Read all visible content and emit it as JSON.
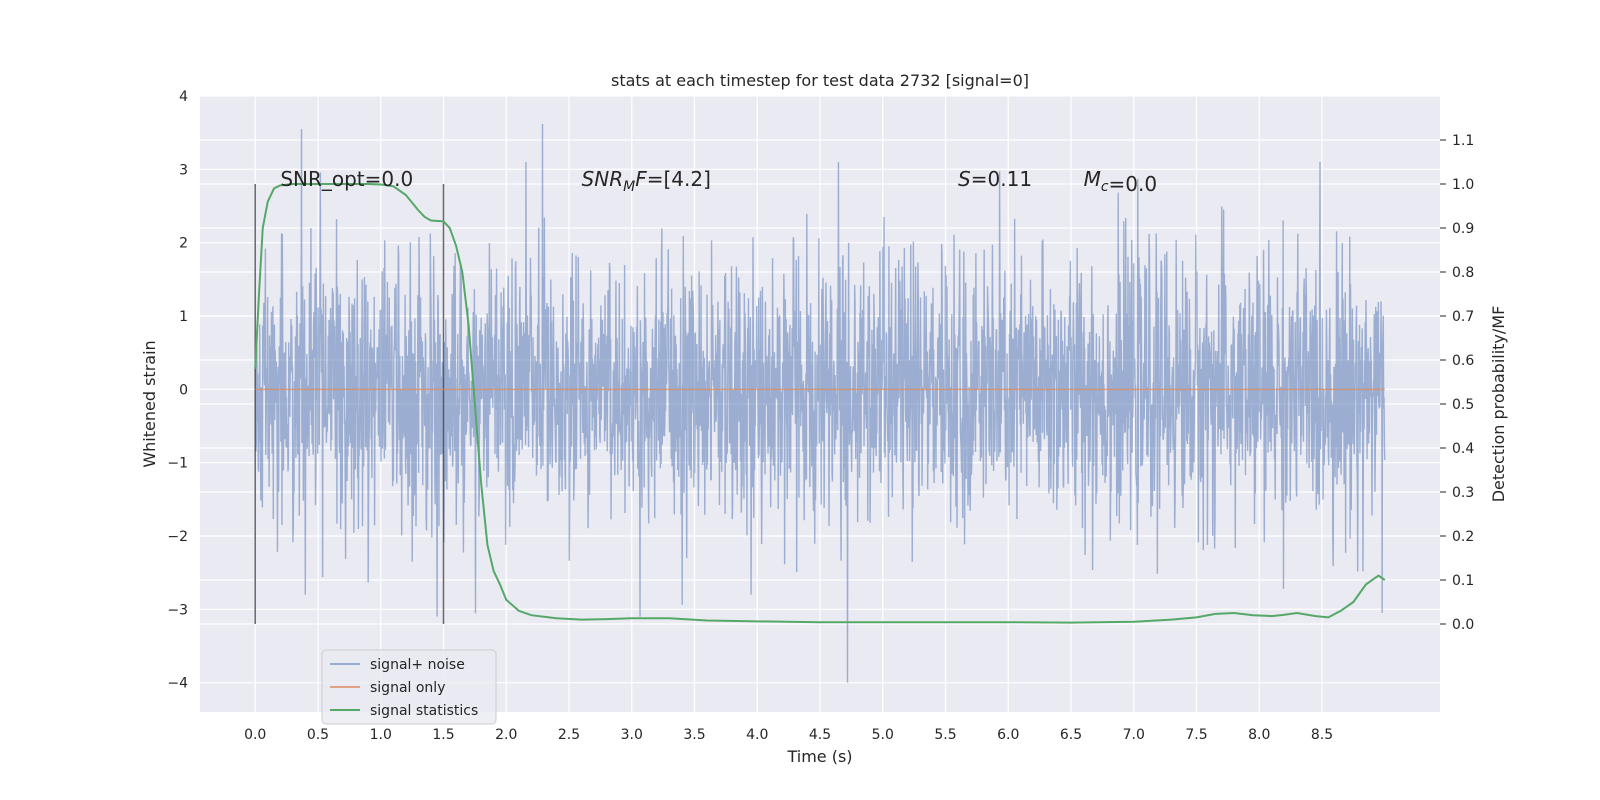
{
  "chart_data": {
    "type": "line",
    "title": "stats at each timestep for test data 2732 [signal=0]",
    "xlabel": "Time (s)",
    "ylabel_left": "Whitened strain",
    "ylabel_right": "Detection probability/MF",
    "xlim": [
      -0.44,
      9.44
    ],
    "ylim_left": [
      -4.4,
      4.0
    ],
    "ylim_right": [
      -0.2,
      1.2
    ],
    "x_ticks": [
      0.0,
      0.5,
      1.0,
      1.5,
      2.0,
      2.5,
      3.0,
      3.5,
      4.0,
      4.5,
      5.0,
      5.5,
      6.0,
      6.5,
      7.0,
      7.5,
      8.0,
      8.5
    ],
    "x_tick_labels": [
      "0.0",
      "0.5",
      "1.0",
      "1.5",
      "2.0",
      "2.5",
      "3.0",
      "3.5",
      "4.0",
      "4.5",
      "5.0",
      "5.5",
      "6.0",
      "6.5",
      "7.0",
      "7.5",
      "8.0",
      "8.5"
    ],
    "y_ticks_left": [
      4,
      3,
      2,
      1,
      0,
      -1,
      -2,
      -3,
      -4
    ],
    "y_tick_labels_left": [
      "4",
      "3",
      "2",
      "1",
      "0",
      "−1",
      "−2",
      "−3",
      "−4"
    ],
    "y_ticks_right": [
      1.1,
      1.0,
      0.9,
      0.8,
      0.7,
      0.6,
      0.5,
      0.4,
      0.3,
      0.2,
      0.1,
      0.0
    ],
    "y_tick_labels_right": [
      "1.1",
      "1.0",
      "0.9",
      "0.8",
      "0.7",
      "0.6",
      "0.5",
      "0.4",
      "0.3",
      "0.2",
      "0.1",
      "0.0"
    ],
    "annotations": [
      {
        "text": "SNR_opt=0.0",
        "x": 0.2
      },
      {
        "text": "SNR_MF=[4.2]",
        "x": 2.6
      },
      {
        "text": "S=0.11",
        "x": 5.6
      },
      {
        "text": "M_c=0.0",
        "x": 6.6
      }
    ],
    "annotation_y": 2.8,
    "window_markers": {
      "x": [
        0.0,
        1.5
      ],
      "y_range": [
        -3.2,
        2.8
      ]
    },
    "series": [
      {
        "name": "signal+ noise",
        "color": "#4c72b0",
        "x_range": [
          0.0,
          9.0
        ],
        "noise_sigma": 0.9,
        "peaks": [
          [
            0.37,
            3.55
          ],
          [
            2.29,
            3.62
          ],
          [
            4.72,
            -4.0
          ],
          [
            8.98,
            -3.05
          ],
          [
            0.4,
            -2.8
          ],
          [
            3.95,
            -2.8
          ]
        ]
      },
      {
        "name": "signal only",
        "color": "#dd8452",
        "x": [
          0.0,
          9.0
        ],
        "y": [
          0.0,
          0.0
        ]
      },
      {
        "name": "signal statistics",
        "color": "#55a868",
        "axis": "right",
        "x": [
          0.0,
          0.03,
          0.06,
          0.1,
          0.15,
          0.2,
          0.3,
          0.5,
          0.7,
          0.9,
          1.0,
          1.1,
          1.2,
          1.3,
          1.35,
          1.4,
          1.5,
          1.55,
          1.6,
          1.65,
          1.7,
          1.75,
          1.8,
          1.85,
          1.9,
          1.95,
          2.0,
          2.1,
          2.2,
          2.4,
          2.6,
          2.8,
          3.0,
          3.3,
          3.6,
          4.0,
          4.5,
          5.0,
          5.5,
          6.0,
          6.5,
          7.0,
          7.3,
          7.5,
          7.65,
          7.8,
          7.95,
          8.1,
          8.2,
          8.3,
          8.45,
          8.55,
          8.65,
          8.75,
          8.85,
          8.95,
          9.0
        ],
        "y": [
          0.58,
          0.75,
          0.9,
          0.96,
          0.99,
          0.997,
          1.0,
          1.0,
          1.0,
          1.0,
          0.999,
          0.995,
          0.975,
          0.94,
          0.925,
          0.917,
          0.915,
          0.9,
          0.86,
          0.8,
          0.68,
          0.5,
          0.32,
          0.18,
          0.12,
          0.09,
          0.055,
          0.03,
          0.02,
          0.013,
          0.01,
          0.011,
          0.013,
          0.013,
          0.008,
          0.006,
          0.004,
          0.004,
          0.004,
          0.004,
          0.003,
          0.005,
          0.01,
          0.015,
          0.023,
          0.025,
          0.02,
          0.018,
          0.021,
          0.025,
          0.018,
          0.015,
          0.03,
          0.05,
          0.09,
          0.11,
          0.1
        ]
      }
    ],
    "legend": {
      "position": "bottom-left",
      "entries": [
        "signal+ noise",
        "signal only",
        "signal statistics"
      ]
    },
    "grid": true,
    "colors": {
      "plot_background": "#eaeaf2",
      "grid": "#ffffff",
      "marker_line": "#444444"
    }
  }
}
